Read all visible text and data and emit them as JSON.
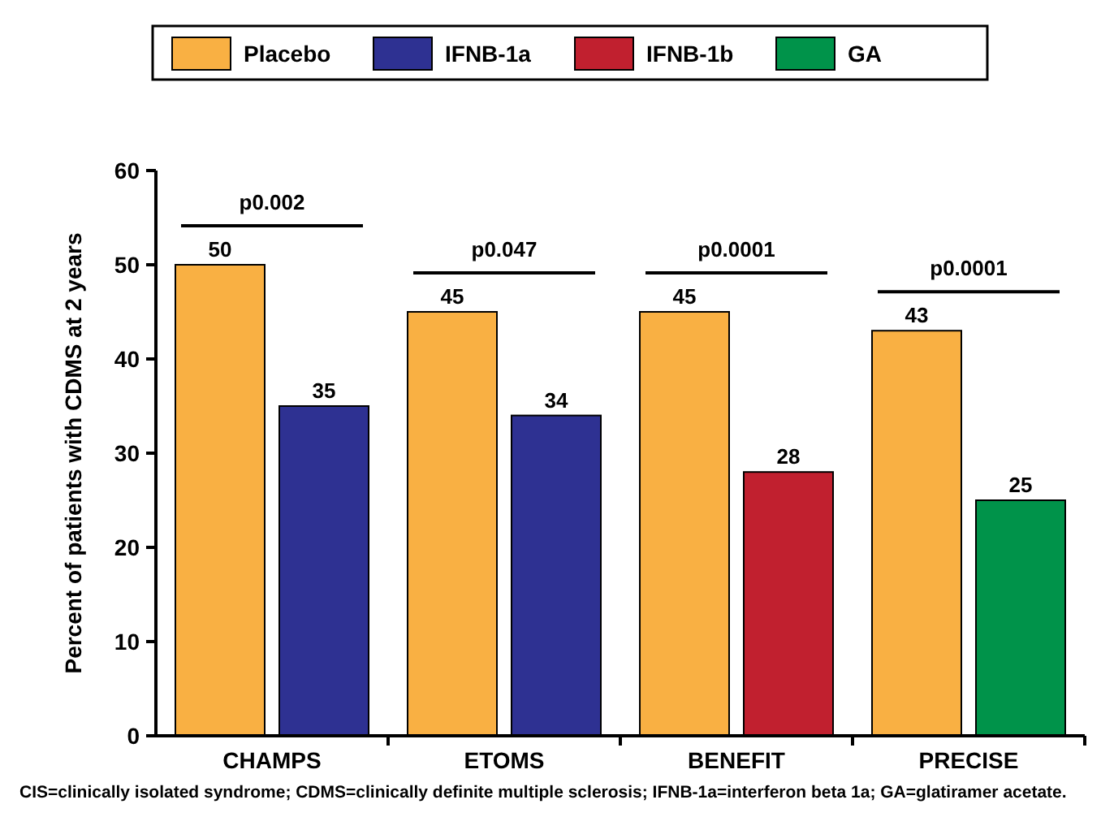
{
  "chart_data": {
    "type": "bar",
    "ylabel": "Percent of patients with CDMS at 2 years",
    "categories": [
      "CHAMPS",
      "ETOMS",
      "BENEFIT",
      "PRECISE"
    ],
    "series": [
      {
        "name": "Placebo",
        "color": "#f9b043",
        "values": [
          50,
          45,
          45,
          43
        ]
      },
      {
        "name": "IFNB-1a",
        "color": "#2e3192",
        "values": [
          35,
          34,
          null,
          null
        ]
      },
      {
        "name": "IFNB-1b",
        "color": "#c1202f",
        "values": [
          null,
          null,
          28,
          null
        ]
      },
      {
        "name": "GA",
        "color": "#00934a",
        "values": [
          null,
          null,
          null,
          25
        ]
      }
    ],
    "ylim": [
      0,
      60
    ],
    "yticks": [
      0,
      10,
      20,
      30,
      40,
      50,
      60
    ],
    "grid": false,
    "legend": "top",
    "data_labels": true,
    "annotations": [
      "p0.002",
      "p0.047",
      "p0.0001",
      "p0.0001",
      "CIS=clinically isolated syndrome; CDMS=clinically definite multiple sclerosis; IFNB-1a=interferon beta 1a; GA=glatiramer acetate."
    ]
  }
}
